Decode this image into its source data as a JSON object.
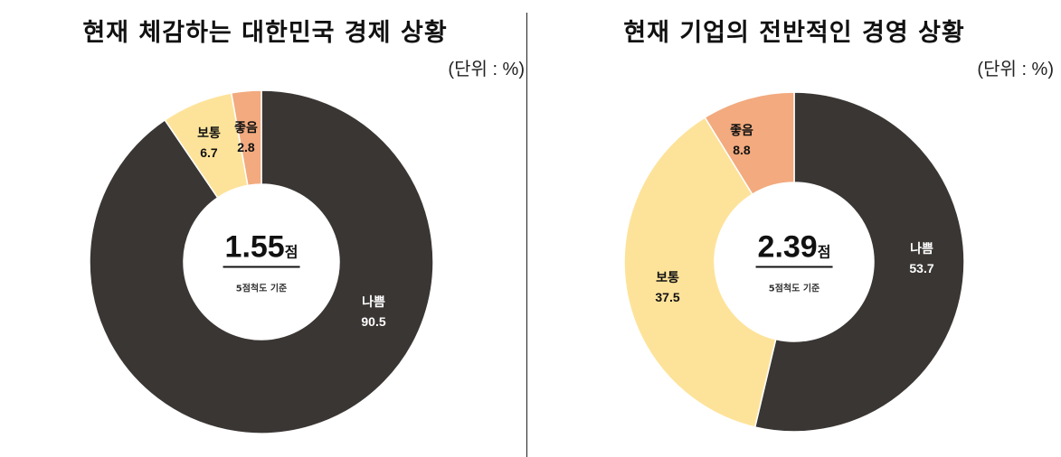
{
  "colors": {
    "bad": "#3a3634",
    "normal": "#fde39a",
    "good": "#f2aa7e"
  },
  "left": {
    "title": "현재 체감하는 대한민국 경제 상황",
    "unit": "(단위 : %)",
    "score": "1.55",
    "score_unit": "점",
    "scale_note": "5점척도 기준",
    "segments": [
      {
        "label": "나쁨",
        "value": "90.5"
      },
      {
        "label": "보통",
        "value": "6.7"
      },
      {
        "label": "좋음",
        "value": "2.8"
      }
    ]
  },
  "right": {
    "title": "현재 기업의 전반적인 경영 상황",
    "unit": "(단위 : %)",
    "score": "2.39",
    "score_unit": "점",
    "scale_note": "5점척도 기준",
    "segments": [
      {
        "label": "나쁨",
        "value": "53.7"
      },
      {
        "label": "보통",
        "value": "37.5"
      },
      {
        "label": "좋음",
        "value": "8.8"
      }
    ]
  },
  "chart_data": [
    {
      "type": "pie",
      "variant": "donut",
      "title": "현재 체감하는 대한민국 경제 상황",
      "unit": "%",
      "categories": [
        "나쁨",
        "보통",
        "좋음"
      ],
      "values": [
        90.5,
        6.7,
        2.8
      ],
      "center_text": "1.55점",
      "center_subtext": "5점척도 기준",
      "start_angle": "12 o'clock",
      "direction": "clockwise",
      "colors": [
        "#3a3634",
        "#fde39a",
        "#f2aa7e"
      ],
      "legend": "none (inline labels)"
    },
    {
      "type": "pie",
      "variant": "donut",
      "title": "현재 기업의 전반적인 경영 상황",
      "unit": "%",
      "categories": [
        "나쁨",
        "보통",
        "좋음"
      ],
      "values": [
        53.7,
        37.5,
        8.8
      ],
      "center_text": "2.39점",
      "center_subtext": "5점척도 기준",
      "start_angle": "12 o'clock",
      "direction": "clockwise",
      "colors": [
        "#3a3634",
        "#fde39a",
        "#f2aa7e"
      ],
      "legend": "none (inline labels)"
    }
  ]
}
